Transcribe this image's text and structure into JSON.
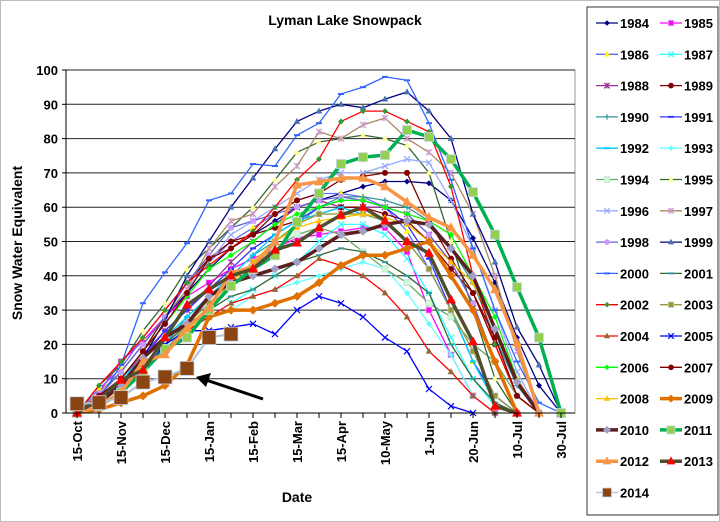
{
  "chart_data": {
    "type": "line",
    "title": "Lyman Lake Snowpack",
    "xlabel": "Date",
    "ylabel": "Snow Water Equivalent",
    "ylim": [
      0,
      100
    ],
    "yticks": [
      0,
      10,
      20,
      30,
      40,
      50,
      60,
      70,
      80,
      90,
      100
    ],
    "grid": true,
    "legend_placement": "right",
    "categories": [
      "15-Oct",
      "",
      "15-Nov",
      "",
      "15-Dec",
      "",
      "15-Jan",
      "",
      "15-Feb",
      "",
      "15-Mar",
      "",
      "15-Apr",
      "",
      "10-May",
      "",
      "1-Jun",
      "",
      "20-Jun",
      "",
      "10-Jul",
      "",
      "30-Jul"
    ],
    "series": [
      {
        "name": "1984",
        "line": "#000080",
        "marker": "diamond",
        "fill": "#000080",
        "values": [
          0,
          5,
          12,
          20,
          28,
          35,
          42,
          48,
          52,
          56,
          60,
          62,
          64,
          66,
          67.5,
          67.5,
          67,
          62,
          51,
          38,
          22,
          8,
          0
        ]
      },
      {
        "name": "1985",
        "line": "#FF00FF",
        "marker": "square",
        "fill": "#FF00FF",
        "values": [
          0,
          6,
          15,
          21,
          28,
          34,
          38,
          42,
          45,
          48,
          51,
          52,
          53,
          54,
          54,
          47,
          30,
          17,
          5,
          0,
          null,
          null,
          null
        ]
      },
      {
        "name": "1986",
        "line": "#6666FF",
        "marker": "triangle",
        "fill": "#FFFF00",
        "values": [
          0,
          7,
          13,
          22,
          30,
          38,
          44,
          50,
          54,
          58,
          62,
          64,
          64,
          63,
          60,
          53,
          42,
          30,
          15,
          5,
          0,
          null,
          null
        ]
      },
      {
        "name": "1987",
        "line": "#33FFFF",
        "marker": "x",
        "fill": "#33FFFF",
        "values": [
          0,
          3,
          8,
          14,
          20,
          24,
          28,
          32,
          36,
          40,
          44,
          50,
          55,
          55,
          52,
          45,
          35,
          22,
          10,
          2,
          0,
          null,
          null
        ]
      },
      {
        "name": "1988",
        "line": "#993399",
        "marker": "star",
        "fill": "#993399",
        "values": [
          0,
          4,
          10,
          17,
          24,
          30,
          37,
          44,
          50,
          55,
          60,
          62,
          60,
          60,
          60,
          58,
          52,
          44,
          32,
          15,
          0,
          null,
          null
        ]
      },
      {
        "name": "1989",
        "line": "#800000",
        "marker": "circle",
        "fill": "#800000",
        "values": [
          0,
          4,
          10,
          18,
          28,
          38,
          45,
          50,
          52,
          54,
          56,
          58,
          60,
          60,
          58,
          56,
          50,
          42,
          35,
          20,
          5,
          0,
          null
        ]
      },
      {
        "name": "1990",
        "line": "#339999",
        "marker": "plus",
        "fill": "#339999",
        "values": [
          0,
          3,
          8,
          14,
          20,
          28,
          34,
          40,
          46,
          50,
          55,
          60,
          63,
          63,
          62,
          60,
          56,
          48,
          38,
          22,
          8,
          0,
          null
        ]
      },
      {
        "name": "1991",
        "line": "#3333FF",
        "marker": "dash",
        "fill": "#3333FF",
        "values": [
          0,
          3,
          9,
          16,
          24,
          30,
          36,
          42,
          48,
          52,
          56,
          60,
          62,
          62,
          60,
          55,
          45,
          30,
          15,
          5,
          0,
          null,
          null
        ]
      },
      {
        "name": "1992",
        "line": "#00CCFF",
        "marker": "dash",
        "fill": "#00CCFF",
        "values": [
          0,
          4,
          10,
          16,
          22,
          28,
          34,
          40,
          46,
          52,
          56,
          58,
          60,
          58,
          56,
          50,
          42,
          30,
          15,
          3,
          0,
          null,
          null
        ]
      },
      {
        "name": "1993",
        "line": "#66FFFF",
        "marker": "diamond",
        "fill": "#66FFFF",
        "values": [
          0,
          3,
          8,
          14,
          20,
          25,
          28,
          30,
          34,
          36,
          38,
          40,
          42,
          44,
          42,
          35,
          26,
          17,
          5,
          0,
          null,
          null,
          null
        ]
      },
      {
        "name": "1994",
        "line": "#66AA66",
        "marker": "square",
        "fill": "#CCFFCC",
        "values": [
          0,
          3,
          8,
          14,
          20,
          26,
          32,
          38,
          44,
          48,
          52,
          54,
          52,
          47,
          42,
          38,
          32,
          28,
          20,
          15,
          5,
          0,
          null
        ]
      },
      {
        "name": "1995",
        "line": "#336633",
        "marker": "triangle",
        "fill": "#FFFF99",
        "values": [
          0,
          8,
          14,
          24,
          32,
          42,
          48,
          54,
          60,
          68,
          76,
          79,
          80,
          81,
          80,
          78,
          70,
          50,
          30,
          10,
          0,
          null,
          null
        ]
      },
      {
        "name": "1996",
        "line": "#99AAFF",
        "marker": "x",
        "fill": "#99AAFF",
        "values": [
          0,
          5,
          12,
          20,
          28,
          36,
          44,
          52,
          56,
          60,
          64,
          68,
          70,
          70,
          72,
          74,
          73,
          62,
          48,
          30,
          12,
          0,
          null
        ]
      },
      {
        "name": "1997",
        "line": "#AA8866",
        "marker": "star",
        "fill": "#CC99CC",
        "values": [
          0,
          6,
          12,
          20,
          28,
          36,
          48,
          56,
          58,
          66,
          72,
          82,
          80,
          84,
          86,
          80,
          76,
          70,
          58,
          40,
          18,
          0,
          null
        ]
      },
      {
        "name": "1998",
        "line": "#6666CC",
        "marker": "circle",
        "fill": "#CC99FF",
        "values": [
          0,
          5,
          12,
          20,
          28,
          38,
          46,
          54,
          56,
          58,
          60,
          62,
          63,
          62,
          60,
          58,
          52,
          44,
          32,
          15,
          0,
          null,
          null
        ]
      },
      {
        "name": "1999",
        "line": "#000080",
        "marker": "triangle",
        "fill": "#4A6FB0",
        "values": [
          0,
          4,
          8,
          16,
          27,
          40,
          50,
          60,
          68.5,
          77,
          85,
          88,
          90,
          89,
          91.5,
          93.6,
          88,
          80,
          58,
          44,
          25,
          14,
          0
        ]
      },
      {
        "name": "2000",
        "line": "#3366FF",
        "marker": "dash",
        "fill": "#3366FF",
        "values": [
          0,
          4,
          14,
          32,
          41,
          49.5,
          62,
          64,
          72.6,
          72,
          81,
          84.5,
          93,
          95,
          98,
          97,
          84.5,
          68,
          48,
          30,
          15,
          3,
          0
        ]
      },
      {
        "name": "2001",
        "line": "#336633",
        "marker": "dash",
        "fill": "#339999",
        "values": [
          0,
          3,
          8,
          14,
          20,
          26,
          30,
          34,
          36,
          40,
          44,
          46,
          48,
          47,
          44,
          40,
          35,
          20,
          10,
          3,
          0,
          null,
          null
        ]
      },
      {
        "name": "2002",
        "line": "#FF0000",
        "marker": "diamond",
        "fill": "#339933",
        "values": [
          0,
          8,
          15,
          22,
          30,
          38,
          43,
          48,
          53,
          60,
          68,
          74,
          85,
          88,
          88,
          85,
          82,
          66,
          40,
          20,
          5,
          0,
          null
        ]
      },
      {
        "name": "2003",
        "line": "#999933",
        "marker": "square",
        "fill": "#999933",
        "values": [
          0,
          2,
          6,
          12,
          18,
          26,
          32,
          38,
          44,
          50,
          55,
          58,
          58,
          58,
          56,
          50,
          42,
          30,
          18,
          5,
          0,
          null,
          null
        ]
      },
      {
        "name": "2004",
        "line": "#FF0000",
        "marker": "triangle",
        "fill": "#996633",
        "values": [
          0,
          3,
          8,
          12,
          18,
          24,
          28,
          32,
          34,
          36,
          40,
          45,
          43,
          40,
          35,
          28,
          18,
          12,
          5,
          0,
          null,
          null,
          null
        ]
      },
      {
        "name": "2005",
        "line": "#0000FF",
        "marker": "x",
        "fill": "#0000FF",
        "values": [
          0,
          2,
          6,
          12,
          20,
          24,
          24,
          25,
          26,
          23,
          30,
          34,
          32,
          28,
          22,
          18,
          7,
          2,
          0,
          null,
          null,
          null,
          null
        ]
      },
      {
        "name": "2006",
        "line": "#00FF00",
        "marker": "diamond",
        "fill": "#00FF00",
        "values": [
          0,
          4,
          10,
          18,
          26,
          34,
          42,
          46,
          50,
          55,
          58,
          60,
          62,
          62,
          60,
          58,
          56,
          52,
          40,
          28,
          10,
          0,
          null
        ]
      },
      {
        "name": "2007",
        "line": "#800000",
        "marker": "circle",
        "fill": "#800000",
        "values": [
          0,
          5,
          10,
          18,
          26,
          35,
          45,
          48,
          52,
          58,
          62,
          64,
          68,
          69,
          70,
          70,
          56,
          45,
          35,
          22,
          5,
          0,
          null
        ]
      },
      {
        "name": "2008",
        "line": "#FFC000",
        "marker": "triangle",
        "fill": "#FFC000",
        "values": [
          0,
          2,
          6,
          12,
          18,
          24,
          30,
          38,
          44,
          50,
          54,
          56,
          57,
          58,
          57,
          55,
          50,
          44,
          38,
          25,
          10,
          0,
          null
        ]
      },
      {
        "name": "2009",
        "line": "#E07000",
        "marker": "diamond",
        "fill": "#E07000",
        "thick": true,
        "values": [
          0,
          1,
          3,
          5,
          8,
          14,
          28,
          30,
          30,
          32,
          34,
          38,
          43,
          46,
          46,
          48,
          50,
          40,
          30,
          15,
          0,
          null,
          null
        ]
      },
      {
        "name": "2010",
        "line": "#5C1F1F",
        "marker": "diamond",
        "fill": "#A0A0C8",
        "thick": true,
        "values": [
          0,
          3,
          8,
          16,
          22,
          26,
          34,
          38,
          40,
          42,
          44,
          48,
          52,
          53,
          55,
          56,
          55,
          48,
          40,
          24.5,
          9,
          0,
          null
        ]
      },
      {
        "name": "2011",
        "line": "#00B050",
        "marker": "square",
        "fill": "#92D050",
        "thick": true,
        "values": [
          0,
          2,
          6,
          12,
          18.7,
          22,
          30,
          37,
          42,
          46,
          55.7,
          64,
          72.6,
          74.6,
          75.2,
          82.5,
          80.5,
          74,
          64.4,
          52,
          36.7,
          22,
          0
        ]
      },
      {
        "name": "2012",
        "line": "#F79646",
        "marker": "triangle",
        "fill": "#F79646",
        "thick": true,
        "values": [
          0,
          2,
          6,
          15,
          17,
          24.8,
          30.6,
          40.8,
          42.6,
          50,
          66.5,
          67.4,
          68.5,
          68.5,
          66,
          61.5,
          57,
          54,
          46,
          36,
          20.4,
          0,
          null
        ]
      },
      {
        "name": "2013",
        "line": "#4F4F2F",
        "marker": "triangle",
        "fill": "#FF0000",
        "thick": true,
        "values": [
          0,
          4,
          9.6,
          12.5,
          22,
          31.5,
          36,
          40,
          42,
          47.5,
          49.6,
          54,
          57.7,
          60,
          56,
          50,
          46.6,
          33,
          20.8,
          2,
          0,
          null,
          null
        ]
      },
      {
        "name": "2014",
        "line": "#B0C0D8",
        "marker": "square",
        "fill": "#8B4513",
        "big": true,
        "values": [
          2.7,
          3,
          4.5,
          9,
          10.5,
          13,
          22,
          23,
          null,
          null,
          null,
          null,
          null,
          null,
          null,
          null,
          null,
          null,
          null,
          null,
          null,
          null,
          null
        ]
      }
    ]
  }
}
